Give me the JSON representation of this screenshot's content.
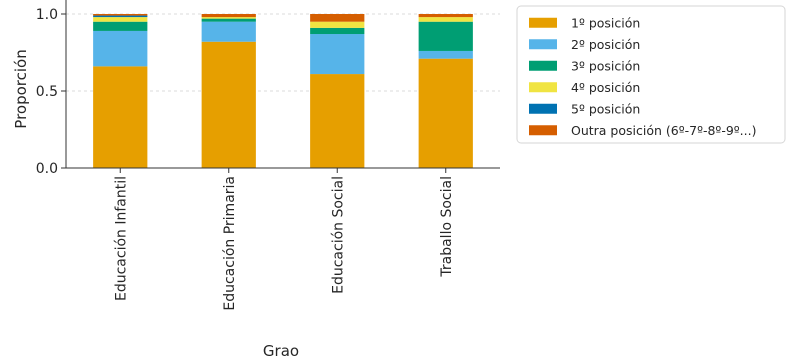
{
  "chart_data": {
    "type": "bar",
    "stacked": true,
    "title": "",
    "xlabel": "Grao",
    "ylabel": "Proporción",
    "ylim": [
      0,
      1
    ],
    "yticks": [
      0.0,
      0.5,
      1.0
    ],
    "ytick_labels": [
      "0.0",
      "0.5",
      "1.0"
    ],
    "grid": true,
    "legend_position": "right, outside plot",
    "categories": [
      "Educación Infantil",
      "Educación Primaria",
      "Educación Social",
      "Traballo Social"
    ],
    "series": [
      {
        "name": "1º posición",
        "color": "#E69F00",
        "values": [
          0.66,
          0.82,
          0.61,
          0.71
        ]
      },
      {
        "name": "2º posición",
        "color": "#56B4E9",
        "values": [
          0.23,
          0.13,
          0.26,
          0.05
        ]
      },
      {
        "name": "3º posición",
        "color": "#009E73",
        "values": [
          0.06,
          0.02,
          0.04,
          0.19
        ]
      },
      {
        "name": "4º posición",
        "color": "#F0E442",
        "values": [
          0.03,
          0.01,
          0.04,
          0.03
        ]
      },
      {
        "name": "5º posición",
        "color": "#0072B2",
        "values": [
          0.01,
          0.0,
          0.0,
          0.0
        ]
      },
      {
        "name": "Outra posición (6º-7º-8º-9º...)",
        "color": "#D55E00",
        "values": [
          0.01,
          0.02,
          0.05,
          0.02
        ]
      }
    ]
  }
}
